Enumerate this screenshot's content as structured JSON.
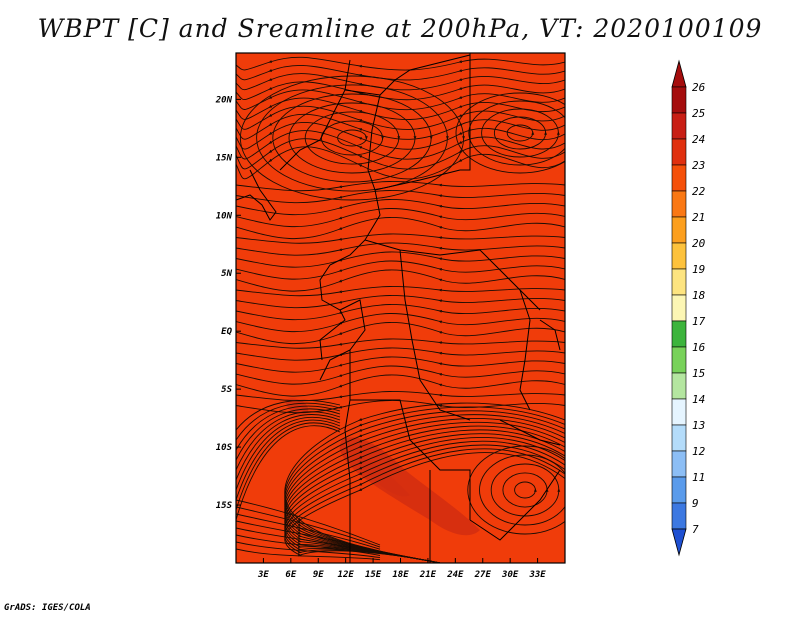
{
  "title": "WBPT [C] and Sreamline at 200hPa, VT: 2020100109",
  "credit": "GrADS: IGES/COLA",
  "map": {
    "lon_range": [
      0,
      36
    ],
    "lat_range": [
      -20,
      24
    ],
    "x_ticks": [
      {
        "lon": 3,
        "label": "3E"
      },
      {
        "lon": 6,
        "label": "6E"
      },
      {
        "lon": 9,
        "label": "9E"
      },
      {
        "lon": 12,
        "label": "12E"
      },
      {
        "lon": 15,
        "label": "15E"
      },
      {
        "lon": 18,
        "label": "18E"
      },
      {
        "lon": 21,
        "label": "21E"
      },
      {
        "lon": 24,
        "label": "24E"
      },
      {
        "lon": 27,
        "label": "27E"
      },
      {
        "lon": 30,
        "label": "30E"
      },
      {
        "lon": 33,
        "label": "33E"
      }
    ],
    "y_ticks": [
      {
        "lat": 20,
        "label": "20N"
      },
      {
        "lat": 15,
        "label": "15N"
      },
      {
        "lat": 10,
        "label": "10N"
      },
      {
        "lat": 5,
        "label": "5N"
      },
      {
        "lat": 0,
        "label": "EQ"
      },
      {
        "lat": -5,
        "label": "5S"
      },
      {
        "lat": -10,
        "label": "10S"
      },
      {
        "lat": -15,
        "label": "15S"
      }
    ],
    "field_color": "#f03c0a",
    "warm_patch_color": "#d22d10",
    "line_color": "#1a0d05"
  },
  "colorbar": {
    "levels": [
      {
        "label": "26",
        "color": "#a50d0d"
      },
      {
        "label": "25",
        "color": "#c81e14"
      },
      {
        "label": "24",
        "color": "#e0300f"
      },
      {
        "label": "23",
        "color": "#f5500a"
      },
      {
        "label": "22",
        "color": "#fa7814"
      },
      {
        "label": "21",
        "color": "#fc9f1e"
      },
      {
        "label": "20",
        "color": "#fdc23c"
      },
      {
        "label": "19",
        "color": "#fde480"
      },
      {
        "label": "18",
        "color": "#fcf6b4"
      },
      {
        "label": "17",
        "color": "#3cb43c"
      },
      {
        "label": "16",
        "color": "#78d25a"
      },
      {
        "label": "15",
        "color": "#b4e6a0"
      },
      {
        "label": "14",
        "color": "#e6f5ff"
      },
      {
        "label": "13",
        "color": "#b4dcfa"
      },
      {
        "label": "12",
        "color": "#8cbef5"
      },
      {
        "label": "11",
        "color": "#5a9beb"
      },
      {
        "label": "9",
        "color": "#3c78e1"
      },
      {
        "label": "7",
        "color": "#1e50d2"
      }
    ],
    "top_arrow_color": "#a50d0d",
    "bottom_arrow_color": "#1e50d2"
  }
}
